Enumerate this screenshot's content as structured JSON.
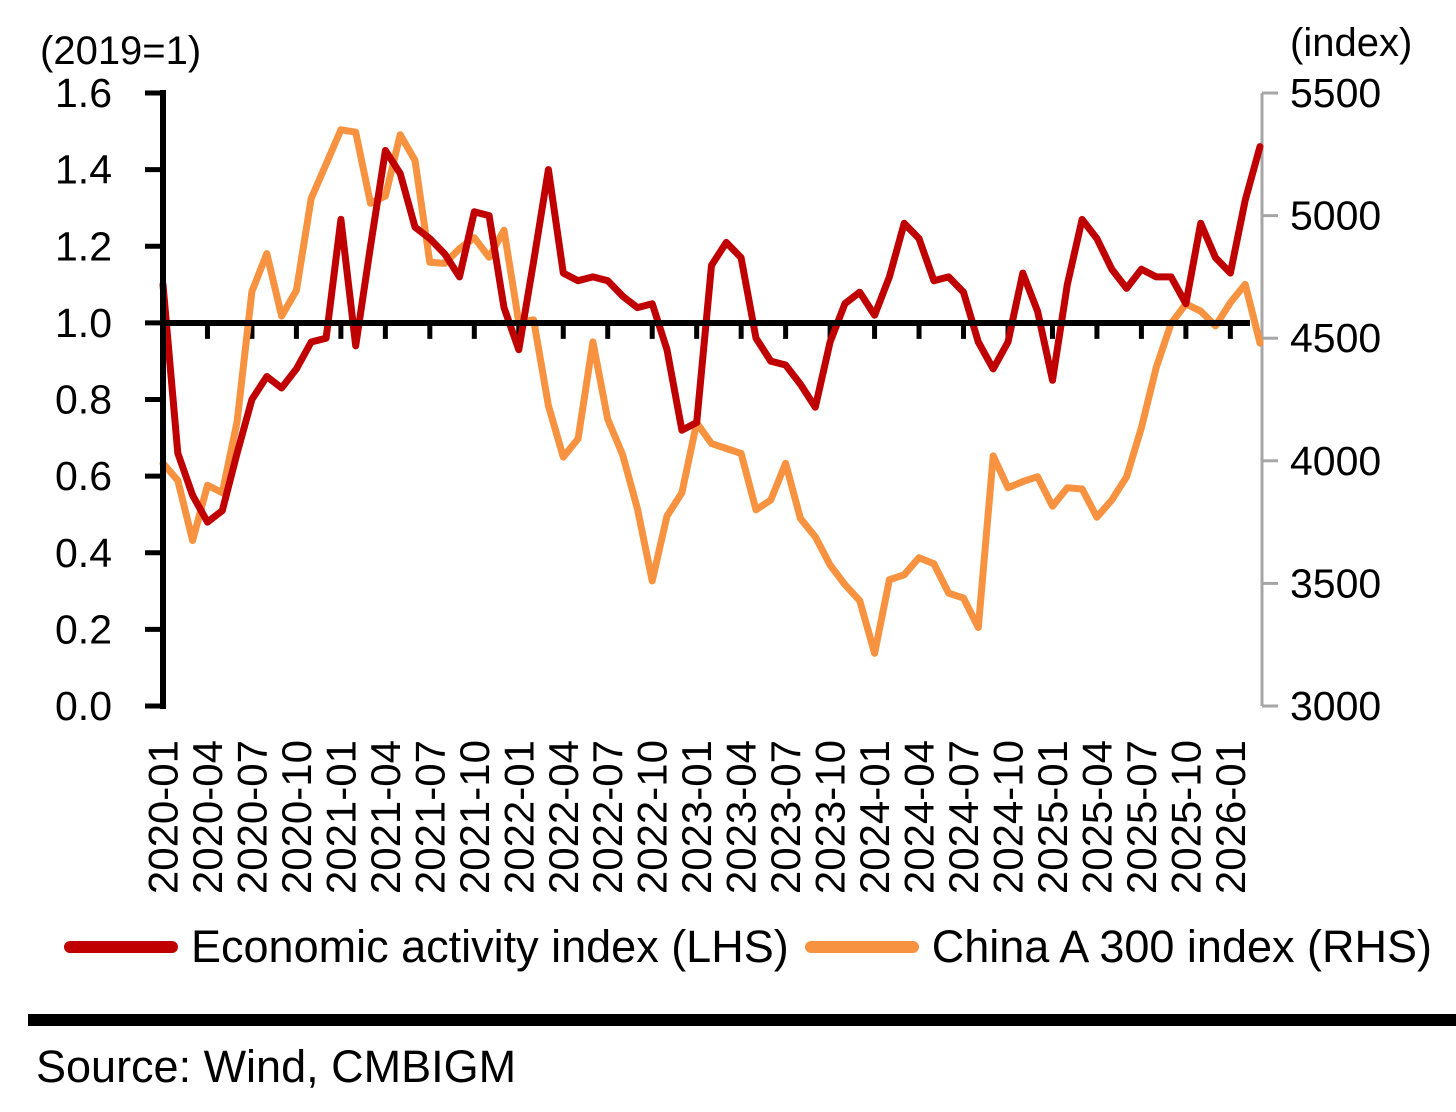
{
  "source": "Source: Wind, CMBIGM",
  "style": {
    "axis_color": "#000000",
    "right_axis_color": "#a6a6a6",
    "red": "#c00000",
    "orange": "#f79340"
  },
  "chart_data": {
    "type": "line",
    "title": "",
    "left_axis": {
      "label": "(2019=1)",
      "min": 0,
      "max": 1.6,
      "ticks": [
        1.6,
        1.4,
        1.2,
        1.0,
        0.8,
        0.6,
        0.4,
        0.2,
        0.0
      ]
    },
    "right_axis": {
      "label": "(index)",
      "min": 3000,
      "max": 5500,
      "ticks": [
        5500,
        5000,
        4500,
        4000,
        3500,
        3000
      ]
    },
    "baseline_left_value": 1.0,
    "grid": false,
    "legend_position": "bottom",
    "x": [
      "2020-01",
      "2020-02",
      "2020-03",
      "2020-04",
      "2020-05",
      "2020-06",
      "2020-07",
      "2020-08",
      "2020-09",
      "2020-10",
      "2020-11",
      "2020-12",
      "2021-01",
      "2021-02",
      "2021-03",
      "2021-04",
      "2021-05",
      "2021-06",
      "2021-07",
      "2021-08",
      "2021-09",
      "2021-10",
      "2021-11",
      "2021-12",
      "2022-01",
      "2022-02",
      "2022-03",
      "2022-04",
      "2022-05",
      "2022-06",
      "2022-07",
      "2022-08",
      "2022-09",
      "2022-10",
      "2022-11",
      "2022-12",
      "2023-01",
      "2023-02",
      "2023-03",
      "2023-04",
      "2023-05",
      "2023-06",
      "2023-07",
      "2023-08",
      "2023-09",
      "2023-10",
      "2023-11",
      "2023-12",
      "2024-01",
      "2024-02",
      "2024-03",
      "2024-04",
      "2024-05",
      "2024-06",
      "2024-07",
      "2024-08",
      "2024-09",
      "2024-10",
      "2024-11",
      "2024-12",
      "2025-01",
      "2025-02",
      "2025-03",
      "2025-04",
      "2025-05",
      "2025-06",
      "2025-07",
      "2025-08",
      "2025-09",
      "2025-10",
      "2025-11",
      "2025-12",
      "2026-01",
      "2026-02",
      "2026-03"
    ],
    "x_tick_labels": [
      "2020-01",
      "2020-04",
      "2020-07",
      "2020-10",
      "2021-01",
      "2021-04",
      "2021-07",
      "2021-10",
      "2022-01",
      "2022-04",
      "2022-07",
      "2022-10",
      "2023-01",
      "2023-04",
      "2023-07",
      "2023-10",
      "2024-01",
      "2024-04",
      "2024-07",
      "2024-10",
      "2025-01",
      "2025-04",
      "2025-07",
      "2025-10",
      "2026-01"
    ],
    "series": [
      {
        "name": "Economic activity index (LHS)",
        "axis": "left",
        "color": "#c00000",
        "values": [
          1.1,
          0.66,
          0.55,
          0.48,
          0.51,
          0.66,
          0.8,
          0.86,
          0.83,
          0.88,
          0.95,
          0.96,
          1.27,
          0.94,
          1.2,
          1.45,
          1.39,
          1.25,
          1.22,
          1.18,
          1.12,
          1.29,
          1.28,
          1.04,
          0.93,
          1.16,
          1.4,
          1.13,
          1.11,
          1.12,
          1.11,
          1.07,
          1.04,
          1.05,
          0.93,
          0.72,
          0.74,
          1.15,
          1.21,
          1.17,
          0.96,
          0.9,
          0.89,
          0.84,
          0.78,
          0.95,
          1.05,
          1.08,
          1.02,
          1.12,
          1.26,
          1.22,
          1.11,
          1.12,
          1.08,
          0.95,
          0.88,
          0.95,
          1.13,
          1.03,
          0.85,
          1.1,
          1.27,
          1.22,
          1.14,
          1.09,
          1.14,
          1.12,
          1.12,
          1.05,
          1.26,
          1.17,
          1.13,
          1.32,
          1.46
        ]
      },
      {
        "name": "China A 300 index (RHS)",
        "axis": "right",
        "color": "#f79340",
        "values": [
          3990,
          3920,
          3675,
          3900,
          3870,
          4160,
          4690,
          4845,
          4590,
          4695,
          5070,
          5210,
          5350,
          5340,
          5050,
          5080,
          5330,
          5225,
          4810,
          4805,
          4865,
          4910,
          4830,
          4940,
          4565,
          4575,
          4225,
          4015,
          4090,
          4485,
          4170,
          4025,
          3805,
          3510,
          3775,
          3870,
          4155,
          4070,
          4050,
          4030,
          3800,
          3840,
          3990,
          3765,
          3690,
          3575,
          3495,
          3430,
          3215,
          3515,
          3535,
          3605,
          3580,
          3460,
          3440,
          3320,
          4020,
          3890,
          3915,
          3935,
          3815,
          3890,
          3885,
          3770,
          3840,
          3935,
          4135,
          4380,
          4560,
          4640,
          4610,
          4550,
          4645,
          4720,
          4480
        ]
      }
    ]
  }
}
